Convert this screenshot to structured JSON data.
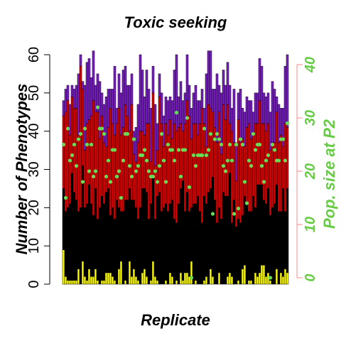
{
  "chart_data": {
    "type": "bar",
    "title": "Toxic seeking",
    "xlabel": "Replicate",
    "ylabel": "Number of Phenotypes",
    "ylabel_right": "Pop. size at P2",
    "ylim": [
      0,
      60
    ],
    "ylim_right": [
      0,
      40
    ],
    "yticks": [
      "0",
      "10",
      "20",
      "30",
      "40",
      "50",
      "60"
    ],
    "yticks_right": [
      "0",
      "10",
      "20",
      "30",
      "40"
    ],
    "stacked": true,
    "series": [
      {
        "color": "#ffff00",
        "values": [
          9,
          2,
          1,
          1,
          1,
          1,
          1,
          4,
          0,
          6,
          2,
          1,
          4,
          2,
          2,
          4,
          1,
          0,
          1,
          1,
          3,
          3,
          3,
          2,
          1,
          0,
          4,
          6,
          0,
          1,
          0,
          6,
          2,
          4,
          2,
          1,
          0,
          3,
          4,
          2,
          0,
          1,
          6,
          2,
          1,
          0,
          0,
          0,
          1,
          0,
          3,
          2,
          0,
          1,
          0,
          3,
          1,
          3,
          3,
          2,
          6,
          0,
          1,
          0,
          0,
          0,
          1,
          2,
          0,
          4,
          2,
          0,
          0,
          3,
          0,
          0,
          0,
          2,
          3,
          2,
          0,
          0,
          1,
          0,
          4,
          5,
          0,
          1,
          1,
          0,
          3,
          2,
          3,
          5,
          5,
          2,
          3,
          1,
          0,
          0,
          4,
          0,
          3,
          2,
          4,
          3
        ]
      },
      {
        "color": "#000000",
        "values": [
          16,
          17,
          19,
          20,
          28,
          23,
          21,
          15,
          20,
          25,
          18,
          20,
          22,
          19,
          16,
          21,
          16,
          20,
          22,
          20,
          21,
          22,
          15,
          18,
          16,
          22,
          16,
          13,
          19,
          21,
          22,
          19,
          20,
          18,
          18,
          16,
          20,
          22,
          21,
          22,
          17,
          20,
          22,
          15,
          22,
          24,
          19,
          20,
          20,
          19,
          18,
          20,
          17,
          15,
          21,
          22,
          26,
          16,
          21,
          17,
          14,
          21,
          20,
          23,
          19,
          16,
          22,
          19,
          24,
          21,
          26,
          22,
          16,
          17,
          17,
          24,
          23,
          21,
          26,
          14,
          22,
          15,
          16,
          16,
          14,
          18,
          21,
          18,
          18,
          23,
          17,
          24,
          23,
          21,
          17,
          19,
          22,
          17,
          20,
          21,
          22,
          19,
          16,
          23,
          15,
          22
        ]
      },
      {
        "color": "#dd0000",
        "values": [
          19,
          26,
          28,
          18,
          20,
          22,
          24,
          20,
          37,
          20,
          15,
          21,
          17,
          23,
          30,
          20,
          28,
          18,
          21,
          16,
          12,
          16,
          28,
          22,
          22,
          20,
          26,
          20,
          22,
          25,
          22,
          15,
          25,
          12,
          12,
          20,
          20,
          15,
          14,
          18,
          25,
          11,
          22,
          14,
          12,
          25,
          23,
          16,
          21,
          20,
          22,
          16,
          25,
          24,
          20,
          17,
          13,
          23,
          24,
          25,
          18,
          21,
          21,
          16,
          23,
          30,
          19,
          15,
          23,
          21,
          17,
          19,
          21,
          25,
          17,
          23,
          20,
          24,
          13,
          24,
          15,
          12,
          26,
          21,
          20,
          13,
          20,
          23,
          19,
          16,
          22,
          16,
          22,
          16,
          20,
          19,
          17,
          17,
          17,
          16,
          19,
          18,
          20,
          11,
          23,
          16
        ]
      },
      {
        "color": "#7a1fc4",
        "values": [
          4,
          6,
          4,
          8,
          3,
          5,
          6,
          16,
          3,
          2,
          17,
          16,
          16,
          10,
          13,
          7,
          10,
          15,
          6,
          10,
          13,
          10,
          5,
          9,
          18,
          4,
          9,
          11,
          15,
          10,
          8,
          12,
          8,
          6,
          9,
          10,
          20,
          16,
          10,
          14,
          9,
          14,
          7,
          16,
          7,
          6,
          8,
          8,
          7,
          9,
          6,
          10,
          14,
          20,
          8,
          11,
          8,
          8,
          12,
          8,
          8,
          8,
          10,
          9,
          6,
          5,
          4,
          19,
          14,
          15,
          6,
          10,
          18,
          7,
          16,
          9,
          9,
          11,
          10,
          6,
          14,
          10,
          7,
          14,
          8,
          9,
          8,
          6,
          10,
          6,
          8,
          8,
          11,
          15,
          8,
          9,
          8,
          10,
          16,
          14,
          4,
          10,
          7,
          10,
          15,
          19
        ]
      },
      {
        "color": "#66dd55",
        "values": [
          25,
          15,
          28,
          22,
          23,
          25,
          21,
          26,
          27,
          18,
          28,
          25,
          20,
          25,
          19,
          20,
          32,
          28,
          28,
          27,
          19,
          22,
          18,
          24,
          24,
          19,
          20,
          15,
          22,
          27,
          27,
          21,
          19,
          26,
          20,
          21,
          23,
          23,
          24,
          22,
          20,
          19,
          19,
          20,
          18,
          21,
          27,
          22,
          18,
          25,
          24,
          24,
          22,
          31,
          24,
          19,
          24,
          24,
          30,
          17,
          0,
          23,
          21,
          23,
          23,
          23,
          28,
          23,
          24,
          27,
          12,
          26,
          27,
          26,
          25,
          21,
          20,
          22,
          25,
          22,
          12,
          25,
          13,
          26,
          25,
          18,
          14,
          22,
          21,
          27,
          24,
          25,
          25,
          21,
          18,
          22,
          23,
          0,
          25,
          24,
          22,
          22,
          26,
          26,
          22,
          29
        ]
      }
    ]
  }
}
